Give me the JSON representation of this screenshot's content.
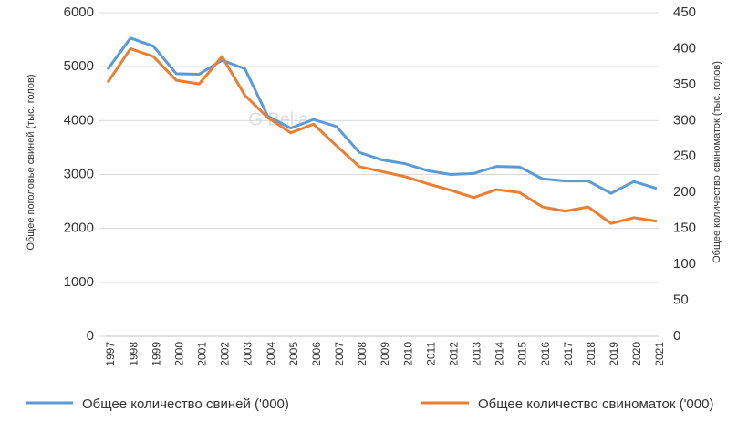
{
  "chart_data": {
    "type": "line",
    "watermark": "G Bella",
    "y_label": "Общее поголовье свиней (тыс. голов)",
    "y2_label": "Общее количество свиноматок (тыс. голов)",
    "categories": [
      "1997",
      "1998",
      "1999",
      "2000",
      "2001",
      "2002",
      "2003",
      "2004",
      "2005",
      "2006",
      "2007",
      "2008",
      "2009",
      "2010",
      "2011",
      "2012",
      "2013",
      "2014",
      "2015",
      "2016",
      "2017",
      "2018",
      "2019",
      "2020",
      "2021"
    ],
    "series": [
      {
        "name": "Общее количество свиней ('000)",
        "color": "#5b9bd5",
        "axis": "y",
        "values": [
          4950,
          5530,
          5380,
          4870,
          4860,
          5120,
          4960,
          4080,
          3860,
          4020,
          3890,
          3410,
          3270,
          3200,
          3070,
          3000,
          3020,
          3150,
          3140,
          2920,
          2880,
          2880,
          2650,
          2870,
          2740
        ]
      },
      {
        "name": "Общее количество свиноматок ('000)",
        "color": "#ed7d31",
        "axis": "y2",
        "values": [
          353,
          400,
          389,
          356,
          351,
          389,
          335,
          304,
          283,
          295,
          265,
          236,
          229,
          222,
          212,
          203,
          193,
          204,
          200,
          180,
          174,
          180,
          157,
          165,
          160
        ]
      }
    ],
    "ylim": [
      0,
      6000
    ],
    "yticks": [
      0,
      1000,
      2000,
      3000,
      4000,
      5000,
      6000
    ],
    "y2lim": [
      0,
      450
    ],
    "y2ticks": [
      0,
      50,
      100,
      150,
      200,
      250,
      300,
      350,
      400,
      450
    ],
    "grid": true,
    "legend": "bottom"
  }
}
